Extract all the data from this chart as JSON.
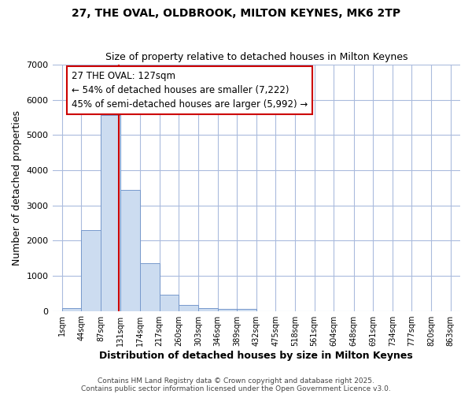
{
  "title1": "27, THE OVAL, OLDBROOK, MILTON KEYNES, MK6 2TP",
  "title2": "Size of property relative to detached houses in Milton Keynes",
  "xlabel": "Distribution of detached houses by size in Milton Keynes",
  "ylabel": "Number of detached properties",
  "bin_edges": [
    1,
    44,
    87,
    131,
    174,
    217,
    260,
    303,
    346,
    389,
    432,
    475,
    518,
    561,
    604,
    648,
    691,
    734,
    777,
    820,
    863
  ],
  "bar_heights": [
    75,
    2300,
    5570,
    3450,
    1350,
    470,
    160,
    70,
    50,
    50,
    0,
    0,
    0,
    0,
    0,
    0,
    0,
    0,
    0,
    0
  ],
  "bar_color": "#ccdcf0",
  "bar_edge_color": "#7799cc",
  "background_color": "#ffffff",
  "grid_color": "#aabbdd",
  "vline_x": 127,
  "vline_color": "#cc0000",
  "ylim": [
    0,
    7000
  ],
  "annotation_text": "27 THE OVAL: 127sqm\n← 54% of detached houses are smaller (7,222)\n45% of semi-detached houses are larger (5,992) →",
  "annotation_box_color": "#ffffff",
  "annotation_box_edge_color": "#cc0000",
  "annotation_fontsize": 8.5,
  "tick_labels": [
    "1sqm",
    "44sqm",
    "87sqm",
    "131sqm",
    "174sqm",
    "217sqm",
    "260sqm",
    "303sqm",
    "346sqm",
    "389sqm",
    "432sqm",
    "475sqm",
    "518sqm",
    "561sqm",
    "604sqm",
    "648sqm",
    "691sqm",
    "734sqm",
    "777sqm",
    "820sqm",
    "863sqm"
  ],
  "footer1": "Contains HM Land Registry data © Crown copyright and database right 2025.",
  "footer2": "Contains public sector information licensed under the Open Government Licence v3.0.",
  "title_fontsize": 10,
  "subtitle_fontsize": 9,
  "axis_label_fontsize": 9,
  "tick_fontsize": 7
}
